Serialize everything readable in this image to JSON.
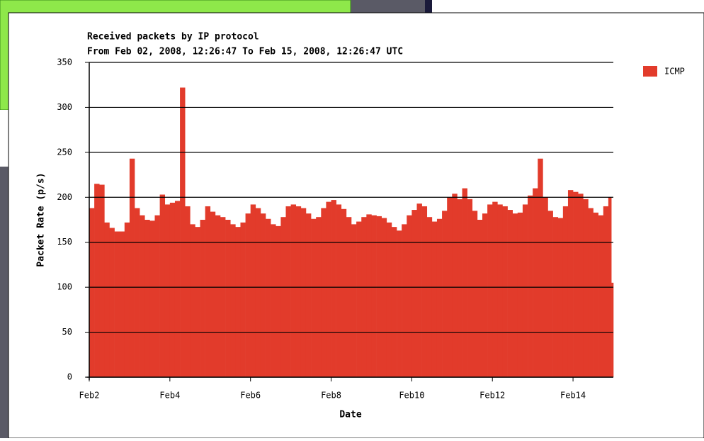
{
  "chart_data": {
    "type": "bar",
    "title": "Received packets by IP protocol",
    "subtitle": "From Feb 02, 2008, 12:26:47 To Feb 15, 2008, 12:26:47 UTC",
    "x_label": "Date",
    "y_label": "Packet Rate (p/s)",
    "xlim": [
      2,
      15
    ],
    "ylim": [
      0,
      350
    ],
    "xticks": [
      {
        "value": 2,
        "label": "Feb2"
      },
      {
        "value": 4,
        "label": "Feb4"
      },
      {
        "value": 6,
        "label": "Feb6"
      },
      {
        "value": 8,
        "label": "Feb8"
      },
      {
        "value": 10,
        "label": "Feb10"
      },
      {
        "value": 12,
        "label": "Feb12"
      },
      {
        "value": 14,
        "label": "Feb14"
      }
    ],
    "yticks": [
      0,
      50,
      100,
      150,
      200,
      250,
      300,
      350
    ],
    "grid": true,
    "legend": "upper right",
    "series": [
      {
        "name": "ICMP",
        "color": "#e23b2b",
        "x": [
          2,
          2.125,
          2.25,
          2.375,
          2.5,
          2.625,
          2.75,
          2.875,
          3,
          3.125,
          3.25,
          3.375,
          3.5,
          3.625,
          3.75,
          3.875,
          4,
          4.125,
          4.25,
          4.375,
          4.5,
          4.625,
          4.75,
          4.875,
          5,
          5.125,
          5.25,
          5.375,
          5.5,
          5.625,
          5.75,
          5.875,
          6,
          6.125,
          6.25,
          6.375,
          6.5,
          6.625,
          6.75,
          6.875,
          7,
          7.125,
          7.25,
          7.375,
          7.5,
          7.625,
          7.75,
          7.875,
          8,
          8.125,
          8.25,
          8.375,
          8.5,
          8.625,
          8.75,
          8.875,
          9,
          9.125,
          9.25,
          9.375,
          9.5,
          9.625,
          9.75,
          9.875,
          10,
          10.125,
          10.25,
          10.375,
          10.5,
          10.625,
          10.75,
          10.875,
          11,
          11.125,
          11.25,
          11.375,
          11.5,
          11.625,
          11.75,
          11.875,
          12,
          12.125,
          12.25,
          12.375,
          12.5,
          12.625,
          12.75,
          12.875,
          13,
          13.125,
          13.25,
          13.375,
          13.5,
          13.625,
          13.75,
          13.875,
          14,
          14.125,
          14.25,
          14.375,
          14.5,
          14.625,
          14.75,
          14.875,
          14.95
        ],
        "values": [
          188,
          215,
          214,
          172,
          166,
          162,
          162,
          172,
          243,
          188,
          180,
          175,
          174,
          180,
          203,
          192,
          194,
          196,
          322,
          190,
          170,
          167,
          175,
          190,
          184,
          180,
          178,
          175,
          170,
          167,
          172,
          182,
          192,
          188,
          182,
          176,
          170,
          168,
          178,
          190,
          192,
          190,
          188,
          182,
          176,
          178,
          188,
          195,
          197,
          192,
          187,
          178,
          170,
          173,
          178,
          181,
          180,
          179,
          177,
          172,
          167,
          163,
          170,
          180,
          186,
          193,
          190,
          178,
          173,
          176,
          185,
          200,
          204,
          198,
          210,
          198,
          185,
          175,
          182,
          192,
          195,
          192,
          190,
          186,
          182,
          183,
          192,
          202,
          210,
          243,
          200,
          185,
          178,
          177,
          190,
          208,
          206,
          204,
          198,
          188,
          183,
          180,
          190,
          200,
          105
        ]
      }
    ]
  }
}
